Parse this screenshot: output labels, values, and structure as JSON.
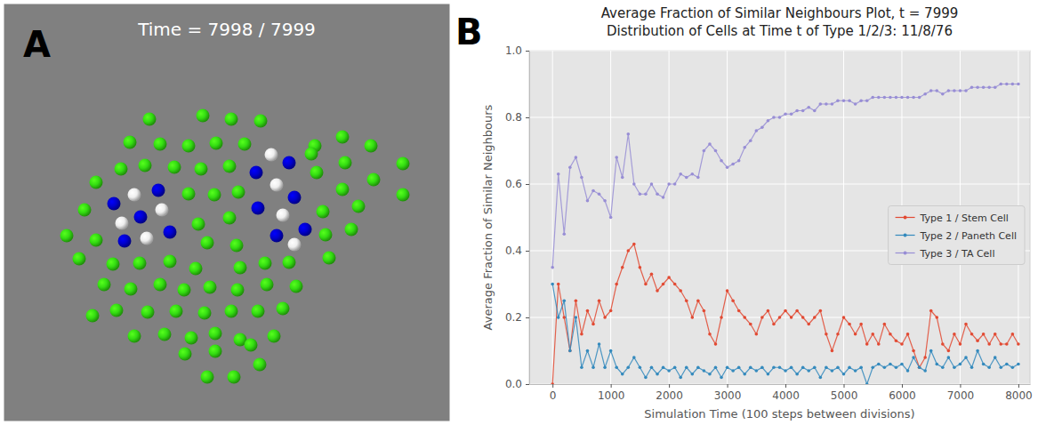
{
  "chart_data": [
    {
      "type": "scatter",
      "panel_label": "A",
      "title": "Time = 7998 / 7999",
      "xlim": [
        5,
        505
      ],
      "ylim": [
        473,
        5
      ],
      "tick_labels": false,
      "grid": false,
      "marker": "sphere",
      "series": [
        {
          "color": "#33dd11",
          "x": [
            168,
            228,
            260,
            293,
            146,
            180,
            212,
            243,
            275,
            354,
            385,
            417,
            136,
            163,
            196,
            226,
            258,
            356,
            388,
            453,
            108,
            212,
            241,
            268,
            385,
            420,
            453,
            95,
            223,
            258,
            363,
            403,
            108,
            75,
            233,
            266,
            366,
            395,
            89,
            127,
            157,
            191,
            220,
            270,
            298,
            325,
            370,
            117,
            147,
            180,
            207,
            236,
            267,
            300,
            333,
            104,
            131,
            166,
            198,
            230,
            260,
            290,
            318,
            151,
            185,
            215,
            242,
            270,
            308,
            208,
            242,
            292,
            233,
            263,
            282,
            350
          ],
          "values": [
            134,
            130,
            134,
            136,
            160,
            162,
            164,
            161,
            162,
            164,
            154,
            164,
            190,
            186,
            188,
            190,
            187,
            194,
            183,
            184,
            205,
            218,
            219,
            216,
            213,
            202,
            219,
            236,
            252,
            245,
            238,
            232,
            270,
            265,
            273,
            276,
            264,
            258,
            291,
            297,
            296,
            294,
            302,
            301,
            296,
            295,
            290,
            320,
            325,
            320,
            326,
            323,
            326,
            320,
            322,
            355,
            349,
            351,
            350,
            352,
            350,
            350,
            347,
            378,
            376,
            380,
            375,
            382,
            378,
            398,
            395,
            410,
            424,
            424,
            388,
            173
          ]
        },
        {
          "color": "#0000cc",
          "x": [
            128,
            178,
            158,
            140,
            191,
            288,
            325,
            331,
            290,
            343,
            311
          ],
          "values": [
            229,
            214,
            244,
            271,
            261,
            194,
            183,
            222,
            234,
            258,
            265
          ]
        },
        {
          "color": "#eeeeee",
          "x": [
            151,
            182,
            137,
            165,
            305,
            311,
            318,
            331
          ],
          "values": [
            219,
            236,
            251,
            268,
            174,
            208,
            242,
            275
          ]
        }
      ]
    },
    {
      "type": "line",
      "panel_label": "B",
      "title": "Average Fraction of Similar Neighbours Plot, t = 7999",
      "subtitle": "Distribution of Cells at Time t of Type 1/2/3: 11/8/76",
      "x_label": "Simulation Time (100 steps between divisions)",
      "y_label": "Average Fraction of Similar Neighbours",
      "xlim": [
        -400,
        8200
      ],
      "ylim": [
        0,
        1.0
      ],
      "xticks": [
        0,
        1000,
        2000,
        3000,
        4000,
        5000,
        6000,
        7000,
        8000
      ],
      "yticks": [
        {
          "value": 0,
          "label": "0.0"
        },
        0.2,
        0.4,
        0.6,
        0.8,
        {
          "value": 1.0,
          "label": "1.0"
        }
      ],
      "grid": true,
      "legend": "right",
      "marker": "o",
      "line_style": "solid",
      "x": [
        0,
        100,
        200,
        300,
        400,
        500,
        600,
        700,
        800,
        900,
        1000,
        1100,
        1200,
        1300,
        1400,
        1500,
        1600,
        1700,
        1800,
        1900,
        2000,
        2100,
        2200,
        2300,
        2400,
        2500,
        2600,
        2700,
        2800,
        2900,
        3000,
        3100,
        3200,
        3300,
        3400,
        3500,
        3600,
        3700,
        3800,
        3900,
        4000,
        4100,
        4200,
        4300,
        4400,
        4500,
        4600,
        4700,
        4800,
        4900,
        5000,
        5100,
        5200,
        5300,
        5400,
        5500,
        5600,
        5700,
        5800,
        5900,
        6000,
        6100,
        6200,
        6300,
        6400,
        6500,
        6600,
        6700,
        6800,
        6900,
        7000,
        7100,
        7200,
        7300,
        7400,
        7500,
        7600,
        7700,
        7800,
        7900,
        8000
      ],
      "series": [
        {
          "name": "Type 1 / Stem Cell",
          "color": "#e24a33",
          "values": [
            0.0,
            0.3,
            0.2,
            0.1,
            0.25,
            0.15,
            0.22,
            0.18,
            0.25,
            0.2,
            0.22,
            0.3,
            0.35,
            0.4,
            0.42,
            0.35,
            0.3,
            0.33,
            0.28,
            0.3,
            0.32,
            0.3,
            0.28,
            0.25,
            0.2,
            0.25,
            0.22,
            0.15,
            0.12,
            0.2,
            0.28,
            0.25,
            0.22,
            0.2,
            0.18,
            0.15,
            0.2,
            0.22,
            0.18,
            0.2,
            0.22,
            0.2,
            0.22,
            0.2,
            0.18,
            0.2,
            0.22,
            0.15,
            0.1,
            0.15,
            0.2,
            0.18,
            0.15,
            0.18,
            0.12,
            0.15,
            0.12,
            0.18,
            0.15,
            0.13,
            0.12,
            0.15,
            0.1,
            0.05,
            0.08,
            0.22,
            0.2,
            0.12,
            0.1,
            0.15,
            0.12,
            0.18,
            0.15,
            0.13,
            0.15,
            0.12,
            0.15,
            0.12,
            0.12,
            0.15,
            0.12
          ]
        },
        {
          "name": "Type 2 / Paneth Cell",
          "color": "#348abd",
          "values": [
            0.3,
            0.2,
            0.25,
            0.1,
            0.2,
            0.05,
            0.1,
            0.05,
            0.12,
            0.05,
            0.1,
            0.05,
            0.03,
            0.05,
            0.08,
            0.05,
            0.02,
            0.05,
            0.03,
            0.05,
            0.04,
            0.05,
            0.02,
            0.05,
            0.03,
            0.05,
            0.04,
            0.03,
            0.05,
            0.02,
            0.05,
            0.04,
            0.05,
            0.03,
            0.05,
            0.04,
            0.05,
            0.03,
            0.05,
            0.05,
            0.04,
            0.05,
            0.03,
            0.05,
            0.04,
            0.05,
            0.02,
            0.05,
            0.04,
            0.05,
            0.03,
            0.05,
            0.04,
            0.05,
            0.0,
            0.05,
            0.06,
            0.05,
            0.06,
            0.05,
            0.06,
            0.04,
            0.08,
            0.05,
            0.04,
            0.1,
            0.06,
            0.05,
            0.08,
            0.05,
            0.06,
            0.08,
            0.05,
            0.1,
            0.06,
            0.05,
            0.08,
            0.05,
            0.06,
            0.05,
            0.06
          ]
        },
        {
          "name": "Type 3 / TA Cell",
          "color": "#988ed5",
          "values": [
            0.35,
            0.63,
            0.45,
            0.65,
            0.68,
            0.62,
            0.55,
            0.58,
            0.57,
            0.55,
            0.5,
            0.68,
            0.62,
            0.75,
            0.6,
            0.57,
            0.57,
            0.6,
            0.57,
            0.56,
            0.6,
            0.6,
            0.63,
            0.62,
            0.63,
            0.62,
            0.7,
            0.72,
            0.7,
            0.67,
            0.65,
            0.66,
            0.67,
            0.71,
            0.73,
            0.76,
            0.77,
            0.79,
            0.8,
            0.8,
            0.81,
            0.81,
            0.82,
            0.82,
            0.83,
            0.82,
            0.84,
            0.84,
            0.84,
            0.85,
            0.85,
            0.85,
            0.84,
            0.85,
            0.85,
            0.86,
            0.86,
            0.86,
            0.86,
            0.86,
            0.86,
            0.86,
            0.86,
            0.86,
            0.87,
            0.88,
            0.88,
            0.87,
            0.88,
            0.88,
            0.88,
            0.88,
            0.89,
            0.89,
            0.89,
            0.89,
            0.89,
            0.9,
            0.9,
            0.9,
            0.9
          ]
        }
      ]
    }
  ]
}
